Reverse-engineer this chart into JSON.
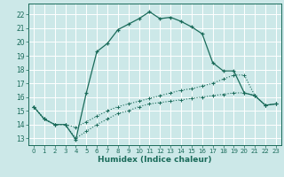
{
  "xlabel": "Humidex (Indice chaleur)",
  "xlim": [
    -0.5,
    23.5
  ],
  "ylim": [
    12.5,
    22.8
  ],
  "yticks": [
    13,
    14,
    15,
    16,
    17,
    18,
    19,
    20,
    21,
    22
  ],
  "xticks": [
    0,
    1,
    2,
    3,
    4,
    5,
    6,
    7,
    8,
    9,
    10,
    11,
    12,
    13,
    14,
    15,
    16,
    17,
    18,
    19,
    20,
    21,
    22,
    23
  ],
  "bg_color": "#cce8e8",
  "grid_color": "#b0d4d4",
  "line_color": "#1a6b5a",
  "line1_x": [
    0,
    1,
    2,
    3,
    4,
    5,
    6,
    7,
    8,
    9,
    10,
    11,
    12,
    13,
    14,
    15,
    16,
    17,
    18,
    19,
    20,
    21,
    22,
    23
  ],
  "line1_y": [
    15.3,
    14.4,
    14.0,
    14.0,
    12.9,
    16.3,
    19.3,
    19.9,
    20.9,
    21.3,
    21.7,
    22.2,
    21.7,
    21.8,
    21.5,
    21.1,
    20.6,
    18.5,
    17.9,
    17.9,
    16.3,
    16.1,
    15.4,
    15.5
  ],
  "line2_x": [
    0,
    1,
    2,
    3,
    4,
    5,
    6,
    7,
    8,
    9,
    10,
    11,
    12,
    13,
    14,
    15,
    16,
    17,
    18,
    19,
    20,
    21,
    22,
    23
  ],
  "line2_y": [
    15.3,
    14.4,
    14.0,
    14.0,
    13.8,
    14.2,
    14.6,
    15.0,
    15.3,
    15.5,
    15.7,
    15.9,
    16.1,
    16.3,
    16.5,
    16.6,
    16.8,
    17.0,
    17.3,
    17.6,
    17.6,
    16.1,
    15.4,
    15.5
  ],
  "line3_x": [
    0,
    1,
    2,
    3,
    4,
    5,
    6,
    7,
    8,
    9,
    10,
    11,
    12,
    13,
    14,
    15,
    16,
    17,
    18,
    19,
    20,
    21,
    22,
    23
  ],
  "line3_y": [
    15.3,
    14.4,
    14.0,
    14.0,
    13.0,
    13.5,
    14.0,
    14.4,
    14.8,
    15.0,
    15.3,
    15.5,
    15.6,
    15.7,
    15.8,
    15.9,
    16.0,
    16.1,
    16.2,
    16.3,
    16.3,
    16.1,
    15.4,
    15.5
  ],
  "xlabel_fontsize": 6.5,
  "tick_fontsize": 5.5
}
